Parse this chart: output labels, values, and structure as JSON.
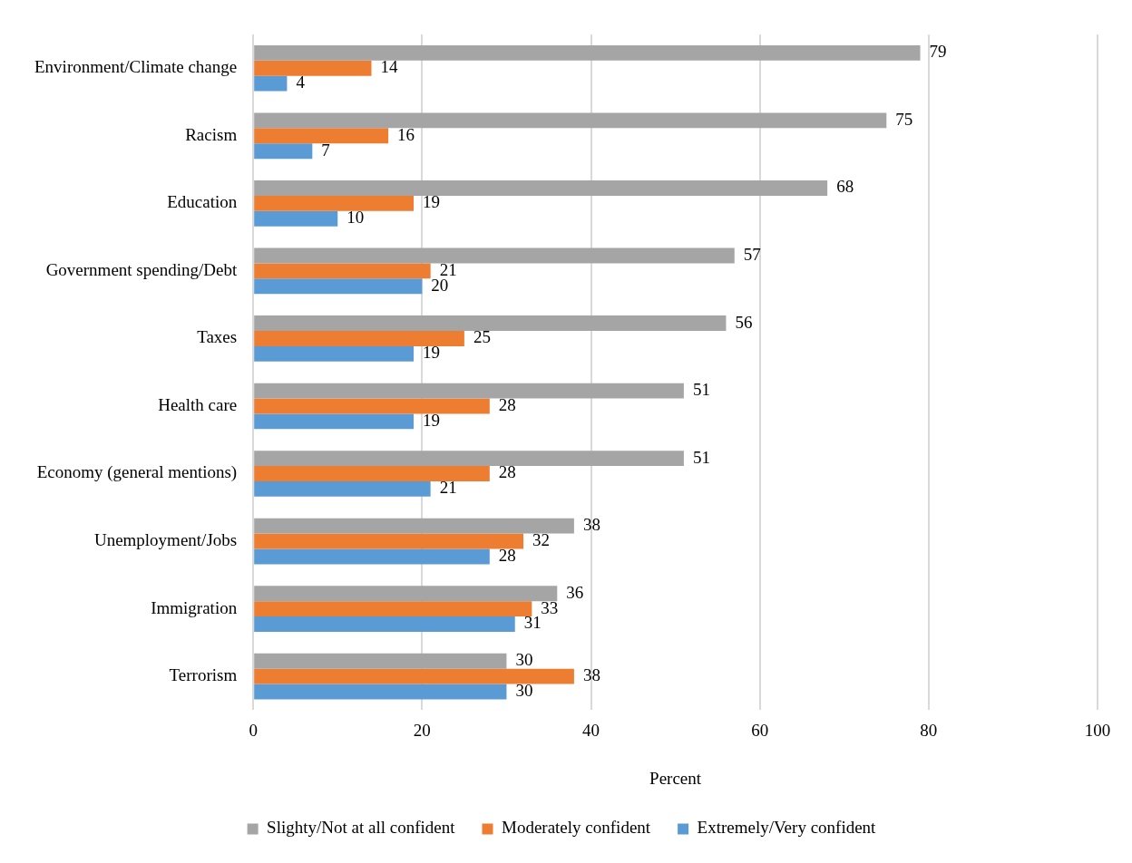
{
  "chart_data": {
    "type": "bar",
    "orientation": "horizontal",
    "xlabel": "Percent",
    "categories": [
      "Environment/Climate change",
      "Racism",
      "Education",
      "Government spending/Debt",
      "Taxes",
      "Health care",
      "Economy (general mentions)",
      "Unemployment/Jobs",
      "Immigration",
      "Terrorism"
    ],
    "series": [
      {
        "name": "Slighty/Not at all confident",
        "color": "#a5a5a5",
        "values": [
          79,
          75,
          68,
          57,
          56,
          51,
          51,
          38,
          36,
          30
        ]
      },
      {
        "name": "Moderately confident",
        "color": "#ed7d31",
        "values": [
          14,
          16,
          19,
          21,
          25,
          28,
          28,
          32,
          33,
          38
        ]
      },
      {
        "name": "Extremely/Very confident",
        "color": "#5b9bd5",
        "values": [
          4,
          7,
          10,
          20,
          19,
          19,
          21,
          28,
          31,
          30
        ]
      }
    ],
    "xlim": [
      0,
      100
    ],
    "xticks": [
      0,
      20,
      40,
      60,
      80,
      100
    ],
    "grid": "x",
    "legend": "bottom",
    "data_labels": true
  }
}
